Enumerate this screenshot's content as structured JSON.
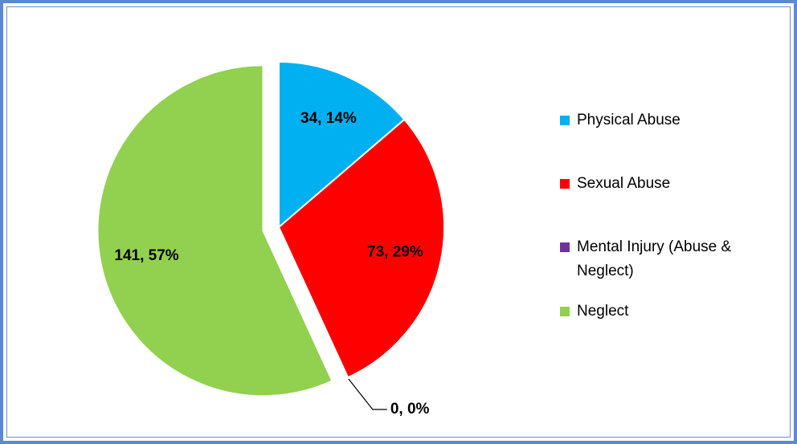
{
  "chart_data": {
    "type": "pie",
    "categories": [
      "Physical Abuse",
      "Sexual Abuse",
      "Mental Injury (Abuse & Neglect)",
      "Neglect"
    ],
    "values": [
      34,
      73,
      0,
      141
    ],
    "value_labels": [
      "34, 14%",
      "73, 29%",
      "0, 0%",
      "141, 57%"
    ],
    "colors": [
      "#00b0f0",
      "#ff0000",
      "#7030a0",
      "#92d050"
    ],
    "exploded": [
      false,
      false,
      false,
      true
    ],
    "legend": "right"
  }
}
